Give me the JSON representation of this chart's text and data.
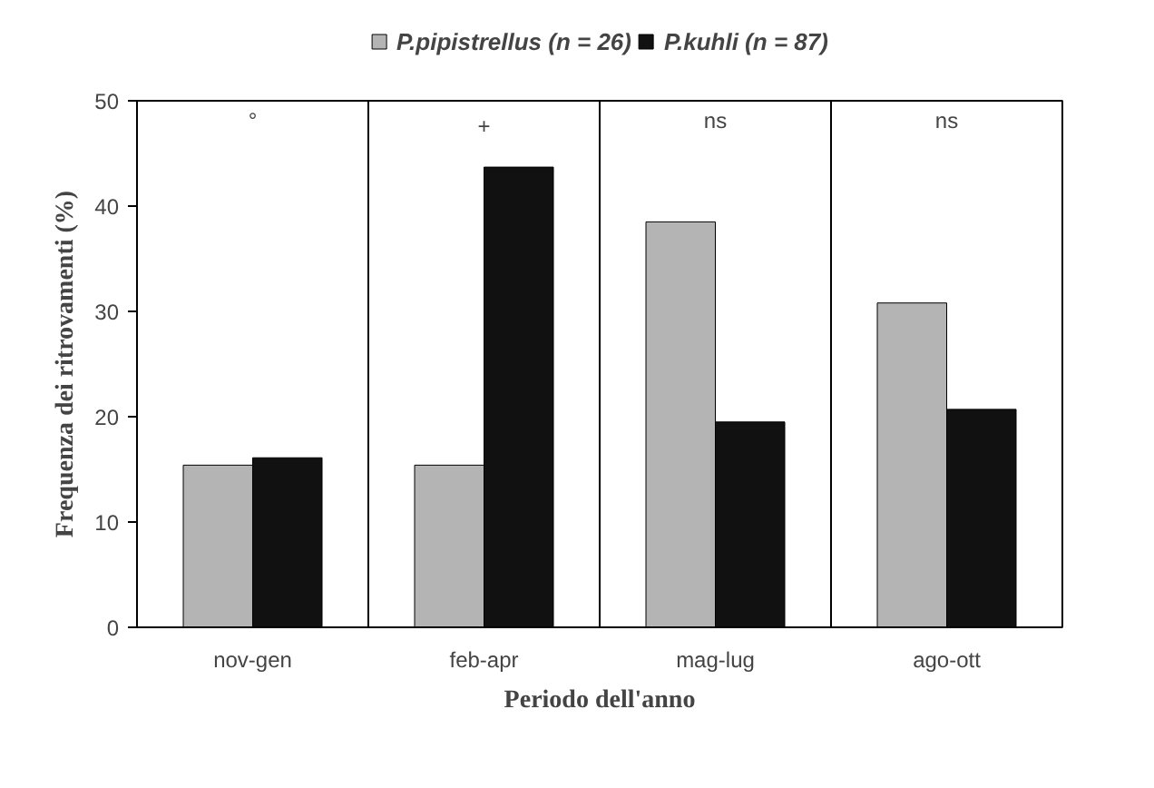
{
  "chart_data": {
    "type": "bar",
    "xlabel": "Periodo dell'anno",
    "ylabel": "Frequenza dei ritrovamenti (%)",
    "categories": [
      "nov-gen",
      "feb-apr",
      "mag-lug",
      "ago-ott"
    ],
    "series": [
      {
        "name": "P.pipistrellus (n = 26)",
        "color": "#b4b4b4",
        "values": [
          15.4,
          15.4,
          38.5,
          30.8
        ]
      },
      {
        "name": "P.kuhli (n = 87)",
        "color": "#111111",
        "values": [
          16.1,
          43.7,
          19.5,
          20.7
        ]
      }
    ],
    "ylim": [
      0,
      50
    ],
    "yticks": [
      0,
      10,
      20,
      30,
      40,
      50
    ],
    "grid": "x",
    "legend": "top",
    "annotations": [
      "°",
      "+",
      "ns",
      "ns"
    ]
  }
}
